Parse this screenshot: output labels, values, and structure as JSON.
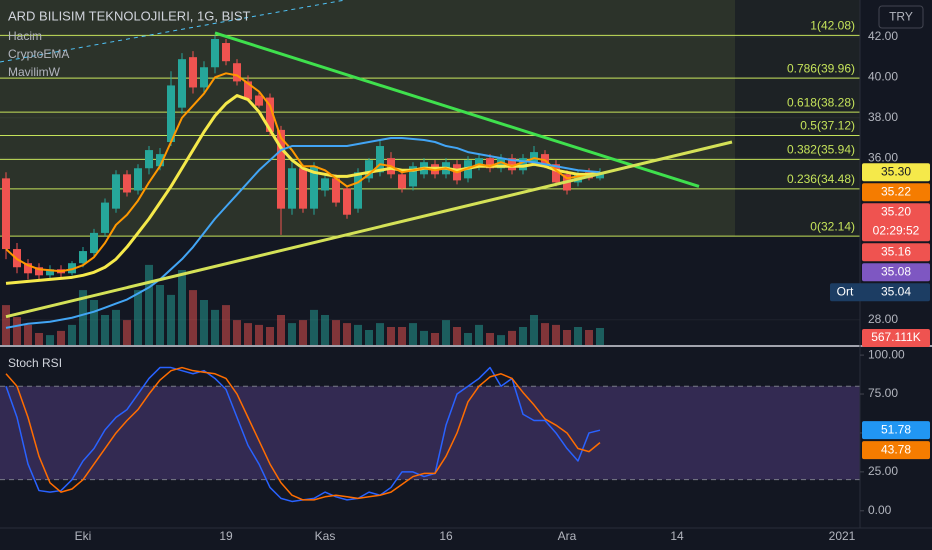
{
  "chart_data": [
    {
      "type": "candlestick",
      "title": "ARD BILISIM TEKNOLOJILERI, 1G, BIST",
      "indicators": [
        "Hacim",
        "CryptoEMA",
        "MavilimW"
      ],
      "currency": "TRY",
      "categories": [
        null,
        null,
        null,
        null,
        null,
        null,
        null,
        "Eki",
        null,
        null,
        null,
        null,
        null,
        null,
        null,
        null,
        null,
        null,
        null,
        null,
        "19",
        null,
        null,
        null,
        null,
        null,
        null,
        null,
        null,
        "Kas",
        null,
        null,
        null,
        null,
        null,
        null,
        null,
        null,
        null,
        null,
        "16",
        null,
        null,
        null,
        null,
        null,
        null,
        null,
        null,
        null,
        null,
        "Ara",
        null,
        null,
        null,
        null,
        null,
        null,
        null,
        null,
        null,
        "14",
        null,
        null,
        null,
        null,
        null,
        null,
        null,
        null,
        null,
        null,
        null,
        null,
        null,
        null,
        "2021",
        null
      ],
      "open": [
        35.0,
        31.5,
        30.8,
        30.6,
        30.2,
        30.5,
        30.3,
        30.8,
        31.3,
        32.3,
        33.5,
        35.2,
        34.4,
        35.5,
        35.6,
        36.8,
        38.5,
        41.0,
        39.5,
        40.5,
        41.7,
        40.7,
        39.8,
        39.1,
        39.0,
        37.4,
        33.5,
        35.5,
        33.5,
        34.4,
        35.0,
        34.5,
        33.5,
        35.0,
        35.3,
        36.0,
        35.2,
        34.6,
        35.2,
        35.7,
        35.2,
        35.7,
        35.0,
        35.6,
        36.0,
        35.5,
        36.0,
        35.4,
        35.8,
        36.2,
        35.7,
        35.2,
        34.8,
        35.3,
        35.0,
        null,
        null,
        null,
        null,
        null,
        null,
        null,
        null,
        null,
        null,
        null,
        null,
        null,
        null,
        null,
        null,
        null,
        null,
        null,
        null,
        null,
        null,
        null
      ],
      "high": [
        35.3,
        31.8,
        31.0,
        30.8,
        30.7,
        30.7,
        30.9,
        31.6,
        32.5,
        34.0,
        35.4,
        35.4,
        35.7,
        36.6,
        36.5,
        40.3,
        41.2,
        41.3,
        40.8,
        42.08,
        41.9,
        40.9,
        40.1,
        39.3,
        39.2,
        37.6,
        35.8,
        35.7,
        35.8,
        35.2,
        35.2,
        34.6,
        35.5,
        36.0,
        36.9,
        36.3,
        35.4,
        35.8,
        36.0,
        35.9,
        36.0,
        35.9,
        36.1,
        36.2,
        36.2,
        36.2,
        36.2,
        36.2,
        36.6,
        36.4,
        35.9,
        35.4,
        35.4,
        35.5,
        35.5,
        null,
        null,
        null,
        null,
        null,
        null,
        null,
        null,
        null,
        null,
        null,
        null,
        null,
        null,
        null,
        null,
        null,
        null,
        null,
        null,
        null,
        null,
        null
      ],
      "low": [
        31.0,
        30.3,
        30.0,
        30.0,
        30.0,
        30.1,
        30.2,
        30.6,
        31.1,
        32.1,
        33.3,
        34.1,
        34.2,
        35.2,
        35.4,
        36.6,
        38.2,
        39.2,
        39.2,
        40.2,
        40.6,
        39.6,
        38.8,
        38.5,
        37.1,
        32.2,
        33.2,
        33.3,
        33.2,
        34.1,
        33.6,
        33.0,
        33.3,
        34.8,
        35.1,
        35.0,
        34.3,
        34.4,
        35.0,
        35.0,
        35.0,
        34.7,
        34.8,
        35.4,
        35.3,
        35.3,
        35.2,
        35.2,
        35.6,
        35.5,
        34.6,
        34.2,
        34.6,
        34.9,
        34.9,
        null,
        null,
        null,
        null,
        null,
        null,
        null,
        null,
        null,
        null,
        null,
        null,
        null,
        null,
        null,
        null,
        null,
        null,
        null,
        null,
        null,
        null,
        null
      ],
      "close": [
        31.5,
        30.6,
        30.3,
        30.2,
        30.5,
        30.3,
        30.8,
        31.4,
        32.3,
        33.8,
        35.2,
        34.3,
        35.5,
        36.4,
        36.2,
        39.6,
        40.9,
        39.5,
        40.5,
        41.9,
        40.8,
        39.8,
        38.9,
        38.6,
        37.3,
        33.5,
        35.5,
        33.5,
        35.6,
        35.0,
        33.8,
        33.2,
        35.3,
        35.9,
        36.6,
        35.2,
        34.5,
        35.6,
        35.8,
        35.2,
        35.8,
        34.9,
        35.9,
        36.0,
        35.5,
        36.0,
        35.4,
        36.0,
        36.3,
        35.7,
        34.8,
        34.4,
        35.2,
        35.0,
        35.3,
        null,
        null,
        null,
        null,
        null,
        null,
        null,
        null,
        null,
        null,
        null,
        null,
        null,
        null,
        null,
        null,
        null,
        null,
        null,
        null,
        null,
        null,
        null
      ],
      "up_color": "#26a69a",
      "down_color": "#ef5350",
      "volume": [
        1330000,
        930000,
        670000,
        400000,
        330000,
        470000,
        670000,
        1830000,
        1500000,
        1000000,
        1170000,
        830000,
        1830000,
        2670000,
        2000000,
        1670000,
        2500000,
        1830000,
        1500000,
        1170000,
        1330000,
        830000,
        730000,
        670000,
        600000,
        1000000,
        730000,
        830000,
        1170000,
        1000000,
        830000,
        730000,
        670000,
        500000,
        730000,
        600000,
        600000,
        730000,
        470000,
        400000,
        830000,
        600000,
        400000,
        670000,
        400000,
        330000,
        470000,
        600000,
        1000000,
        730000,
        670000,
        500000,
        600000,
        500000,
        567111,
        null,
        null,
        null,
        null,
        null,
        null,
        null,
        null,
        null,
        null,
        null,
        null,
        null,
        null,
        null,
        null,
        null,
        null,
        null,
        null,
        null,
        null,
        null
      ],
      "volume_lim": [
        0,
        11500000
      ],
      "lines": [
        {
          "color": "#f5e94a",
          "values": [
            29.8,
            29.85,
            29.9,
            29.95,
            30.0,
            30.05,
            30.1,
            30.2,
            30.35,
            30.6,
            31.0,
            31.6,
            32.3,
            33.0,
            33.8,
            34.6,
            35.5,
            36.4,
            37.3,
            38.1,
            38.7,
            39.1,
            38.9,
            38.3,
            37.4,
            36.5,
            35.9,
            35.5,
            35.3,
            35.2,
            35.1,
            35.1,
            35.2,
            35.3,
            35.4,
            35.5,
            35.4,
            35.4,
            35.5,
            35.5,
            35.5,
            35.4,
            35.5,
            35.6,
            35.6,
            35.6,
            35.6,
            35.6,
            35.7,
            35.6,
            35.4,
            35.3,
            35.2,
            35.2,
            35.25,
            null,
            null,
            null,
            null,
            null,
            null,
            null,
            null,
            null,
            null,
            null,
            null,
            null,
            null,
            null,
            null,
            null,
            null,
            null,
            null,
            null,
            null,
            null
          ]
        },
        {
          "color": "#ff9800",
          "values": [
            31.5,
            31.0,
            30.7,
            30.5,
            30.45,
            30.4,
            30.5,
            30.7,
            31.1,
            31.8,
            32.7,
            33.2,
            33.9,
            34.8,
            35.6,
            36.8,
            38.0,
            38.6,
            39.2,
            40.0,
            40.2,
            40.1,
            39.7,
            39.3,
            38.6,
            37.0,
            36.4,
            35.6,
            35.6,
            35.4,
            35.0,
            34.6,
            34.8,
            35.2,
            35.7,
            35.6,
            35.3,
            35.4,
            35.5,
            35.4,
            35.5,
            35.3,
            35.5,
            35.7,
            35.6,
            35.8,
            35.6,
            35.8,
            36.0,
            35.9,
            35.4,
            35.0,
            35.1,
            35.1,
            35.22,
            null,
            null,
            null,
            null,
            null,
            null,
            null,
            null,
            null,
            null,
            null,
            null,
            null,
            null,
            null,
            null,
            null,
            null,
            null,
            null,
            null,
            null,
            null
          ]
        },
        {
          "color": "#42a5f5",
          "values": [
            27.6,
            27.7,
            27.8,
            27.85,
            27.9,
            28.0,
            28.1,
            28.25,
            28.4,
            28.6,
            28.8,
            29.0,
            29.3,
            29.6,
            30.0,
            30.5,
            31.0,
            31.6,
            32.3,
            33.0,
            33.6,
            34.2,
            34.8,
            35.4,
            35.9,
            36.4,
            36.6,
            36.6,
            36.6,
            36.6,
            36.6,
            36.6,
            36.7,
            36.8,
            36.9,
            37.0,
            37.0,
            36.95,
            36.9,
            36.8,
            36.6,
            36.5,
            36.3,
            36.2,
            36.1,
            36.0,
            35.9,
            35.85,
            35.8,
            35.7,
            35.6,
            35.5,
            35.4,
            35.35,
            35.3,
            null,
            null,
            null,
            null,
            null,
            null,
            null,
            null,
            null,
            null,
            null,
            null,
            null,
            null,
            null,
            null,
            null,
            null,
            null,
            null,
            null,
            null,
            null
          ]
        }
      ],
      "ylim": [
        26.75,
        43.83
      ],
      "yticks": [
        {
          "value": 28,
          "label": "28.00"
        },
        {
          "value": 36,
          "label": "36.00"
        },
        {
          "value": 38,
          "label": "38.00"
        },
        {
          "value": 40,
          "label": "40.00"
        },
        {
          "value": 42,
          "label": "42.00"
        }
      ],
      "fib_color": "#c5e35a",
      "fib_levels": [
        {
          "value": 42.08,
          "label": "1(42.08)"
        },
        {
          "value": 39.96,
          "label": "0.786(39.96)"
        },
        {
          "value": 38.28,
          "label": "0.618(38.28)"
        },
        {
          "value": 37.12,
          "label": "0.5(37.12)"
        },
        {
          "value": 35.94,
          "label": "0.382(35.94)"
        },
        {
          "value": 34.48,
          "label": "0.236(34.48)"
        },
        {
          "value": 32.14,
          "label": "0(32.14)"
        }
      ],
      "trend_lines": [
        {
          "color": "#3fe04d",
          "points_x": [
            19,
            63
          ],
          "points_y": [
            42.2,
            34.6
          ]
        },
        {
          "color": "#d4e157",
          "points_x": [
            0,
            66
          ],
          "points_y": [
            28.15,
            36.8
          ]
        }
      ],
      "price_tags": [
        {
          "value": 35.3,
          "label": "35.30",
          "color": "#f5e94a",
          "text_color": "#131722"
        },
        {
          "value": 35.22,
          "label": "35.22",
          "color": "#f57c00"
        },
        {
          "value": 35.2,
          "label": "35.20",
          "color": "#ef5350",
          "countdown": "02:29:52"
        },
        {
          "value": 35.16,
          "label": "35.16",
          "color": "#ef5350"
        },
        {
          "value": 35.08,
          "label": "35.08",
          "color": "#7e57c2"
        },
        {
          "value": 35.04,
          "label": "35.04",
          "color": "#1c3d63",
          "name": "Ort"
        }
      ],
      "volume_tag": {
        "value": 567111,
        "label": "567.111K",
        "color": "#ef5350"
      }
    },
    {
      "type": "stoch_rsi",
      "title": "Stoch RSI",
      "series": [
        {
          "color": "#2962ff",
          "values": [
            80,
            60,
            30,
            13,
            12,
            13,
            20,
            32,
            40,
            52,
            60,
            65,
            75,
            85,
            92,
            92,
            90,
            88,
            90,
            85,
            78,
            60,
            42,
            30,
            15,
            8,
            6,
            7,
            8,
            12,
            9,
            7,
            8,
            12,
            10,
            15,
            25,
            25,
            22,
            24,
            55,
            75,
            80,
            85,
            92,
            80,
            85,
            62,
            58,
            58,
            50,
            40,
            32,
            50,
            51.78,
            null,
            null,
            null,
            null,
            null,
            null,
            null,
            null,
            null,
            null,
            null,
            null,
            null,
            null,
            null,
            null,
            null,
            null,
            null,
            null,
            null,
            null,
            null
          ]
        },
        {
          "color": "#ff6d00",
          "values": [
            88,
            80,
            60,
            35,
            18,
            12,
            14,
            20,
            30,
            40,
            50,
            58,
            65,
            75,
            84,
            90,
            92,
            90,
            89,
            88,
            85,
            75,
            60,
            45,
            30,
            18,
            10,
            7,
            7,
            9,
            10,
            9,
            8,
            9,
            10,
            12,
            17,
            22,
            24,
            24,
            35,
            50,
            70,
            80,
            86,
            88,
            85,
            76,
            68,
            59,
            55,
            50,
            40,
            38,
            43.78,
            null,
            null,
            null,
            null,
            null,
            null,
            null,
            null,
            null,
            null,
            null,
            null,
            null,
            null,
            null,
            null,
            null,
            null,
            null,
            null,
            null,
            null,
            null
          ]
        }
      ],
      "ylim": [
        -10.4,
        105.2
      ],
      "yticks": [
        {
          "value": 0,
          "label": "0.00"
        },
        {
          "value": 25,
          "label": "25.00"
        },
        {
          "value": 50,
          "label": "50.00"
        },
        {
          "value": 75,
          "label": "75.00"
        },
        {
          "value": 100,
          "label": "100.00"
        }
      ],
      "bands": [
        20,
        80
      ],
      "band_color": "#7e57c2",
      "value_tags": [
        {
          "value": 51.78,
          "label": "51.78",
          "color": "#2196f3"
        },
        {
          "value": 43.78,
          "label": "43.78",
          "color": "#f57c00"
        }
      ]
    }
  ]
}
